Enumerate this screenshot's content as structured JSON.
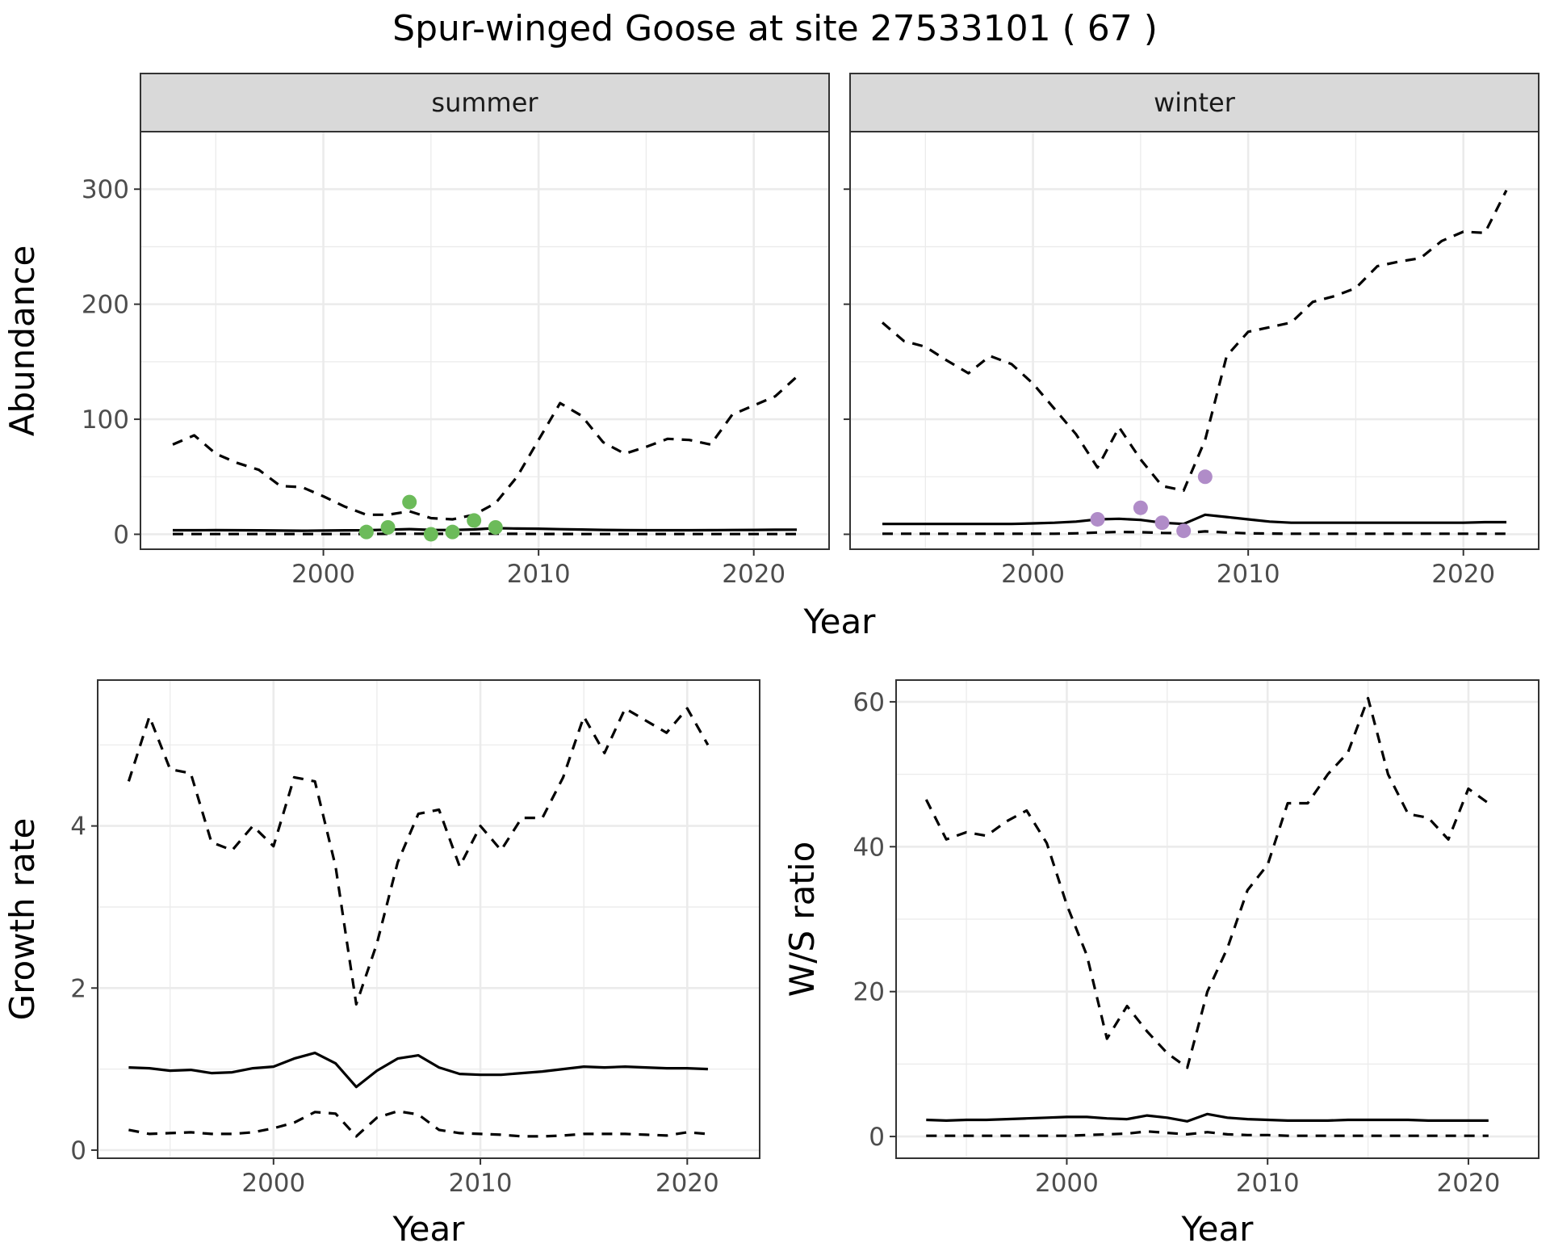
{
  "title": "Spur-winged Goose at site 27533101 ( 67 )",
  "colors": {
    "summer_points": "#6cbb5a",
    "winter_points": "#b08cc8",
    "lines": "#000000",
    "strip_fill": "#d9d9d9",
    "grid": "#ebebeb"
  },
  "chart_data": [
    {
      "type": "line",
      "facet": "summer",
      "strip_label": "summer",
      "xlabel": "Year",
      "ylabel": "Abundance",
      "xlim": [
        1991.5,
        2023.5
      ],
      "ylim": [
        -13,
        350
      ],
      "xticks": [
        2000,
        2010,
        2020
      ],
      "xtick_labels": [
        "2000",
        "2010",
        "2020"
      ],
      "yticks": [
        0,
        100,
        200,
        300
      ],
      "ytick_labels": [
        "0",
        "100",
        "200",
        "300"
      ],
      "grid": true,
      "series": [
        {
          "role": "upper",
          "style": "dashed",
          "x": [
            1993,
            1994,
            1995,
            1996,
            1997,
            1998,
            1999,
            2000,
            2001,
            2002,
            2003,
            2004,
            2005,
            2006,
            2007,
            2008,
            2009,
            2010,
            2011,
            2012,
            2013,
            2014,
            2015,
            2016,
            2017,
            2018,
            2019,
            2020,
            2021,
            2022
          ],
          "y": [
            78,
            86,
            70,
            62,
            56,
            42,
            41,
            33,
            24,
            17,
            17,
            20,
            14,
            13,
            17,
            27,
            50,
            82,
            114,
            103,
            80,
            70,
            76,
            83,
            82,
            78,
            104,
            112,
            120,
            137
          ]
        },
        {
          "role": "mean",
          "style": "solid",
          "x": [
            1993,
            1994,
            1995,
            1996,
            1997,
            1998,
            1999,
            2000,
            2001,
            2002,
            2003,
            2004,
            2005,
            2006,
            2007,
            2008,
            2009,
            2010,
            2011,
            2012,
            2013,
            2014,
            2015,
            2016,
            2017,
            2018,
            2019,
            2020,
            2021,
            2022
          ],
          "y": [
            3.5,
            3.5,
            3.6,
            3.5,
            3.4,
            3.2,
            3.1,
            3.2,
            3.4,
            3.5,
            4.0,
            4.5,
            3.8,
            3.7,
            4.2,
            5.3,
            5.0,
            4.8,
            4.4,
            4.1,
            3.8,
            3.6,
            3.5,
            3.5,
            3.5,
            3.6,
            3.7,
            3.8,
            3.9,
            4.0
          ]
        },
        {
          "role": "lower",
          "style": "dashed",
          "x": [
            1993,
            1994,
            1995,
            1996,
            1997,
            1998,
            1999,
            2000,
            2001,
            2002,
            2003,
            2004,
            2005,
            2006,
            2007,
            2008,
            2009,
            2010,
            2011,
            2012,
            2013,
            2014,
            2015,
            2016,
            2017,
            2018,
            2019,
            2020,
            2021,
            2022
          ],
          "y": [
            0.2,
            0.2,
            0.2,
            0.2,
            0.2,
            0.2,
            0.2,
            0.2,
            0.2,
            0.3,
            0.4,
            0.5,
            0.4,
            0.4,
            0.4,
            0.5,
            0.4,
            0.3,
            0.3,
            0.2,
            0.2,
            0.2,
            0.2,
            0.2,
            0.2,
            0.2,
            0.2,
            0.2,
            0.2,
            0.2
          ]
        }
      ],
      "points": {
        "x": [
          2002,
          2003,
          2004,
          2005,
          2006,
          2007,
          2008
        ],
        "y": [
          2,
          6,
          28,
          0,
          2,
          12,
          6
        ]
      }
    },
    {
      "type": "line",
      "facet": "winter",
      "strip_label": "winter",
      "xlabel": "Year",
      "ylabel": "Abundance",
      "xlim": [
        1991.5,
        2023.5
      ],
      "ylim": [
        -13,
        350
      ],
      "xticks": [
        2000,
        2010,
        2020
      ],
      "xtick_labels": [
        "2000",
        "2010",
        "2020"
      ],
      "yticks": [
        0,
        100,
        200,
        300
      ],
      "grid": true,
      "series": [
        {
          "role": "upper",
          "style": "dashed",
          "x": [
            1993,
            1994,
            1995,
            1996,
            1997,
            1998,
            1999,
            2000,
            2001,
            2002,
            2003,
            2004,
            2005,
            2006,
            2007,
            2008,
            2009,
            2010,
            2011,
            2012,
            2013,
            2014,
            2015,
            2016,
            2017,
            2018,
            2019,
            2020,
            2021,
            2022
          ],
          "y": [
            184,
            168,
            163,
            151,
            140,
            155,
            148,
            131,
            109,
            87,
            58,
            93,
            65,
            42,
            38,
            82,
            155,
            176,
            180,
            184,
            202,
            207,
            214,
            233,
            237,
            240,
            255,
            263,
            262,
            299
          ]
        },
        {
          "role": "mean",
          "style": "solid",
          "x": [
            1993,
            1994,
            1995,
            1996,
            1997,
            1998,
            1999,
            2000,
            2001,
            2002,
            2003,
            2004,
            2005,
            2006,
            2007,
            2008,
            2009,
            2010,
            2011,
            2012,
            2013,
            2014,
            2015,
            2016,
            2017,
            2018,
            2019,
            2020,
            2021,
            2022
          ],
          "y": [
            9,
            9,
            9,
            9,
            9,
            9,
            9,
            9.5,
            10,
            11,
            13,
            13.5,
            12.5,
            10,
            9,
            17,
            15,
            13,
            11,
            10,
            10,
            10,
            10,
            10,
            10,
            10,
            10,
            10,
            10.5,
            10.5
          ]
        },
        {
          "role": "lower",
          "style": "dashed",
          "x": [
            1993,
            1994,
            1995,
            1996,
            1997,
            1998,
            1999,
            2000,
            2001,
            2002,
            2003,
            2004,
            2005,
            2006,
            2007,
            2008,
            2009,
            2010,
            2011,
            2012,
            2013,
            2014,
            2015,
            2016,
            2017,
            2018,
            2019,
            2020,
            2021,
            2022
          ],
          "y": [
            0.5,
            0.5,
            0.5,
            0.5,
            0.5,
            0.5,
            0.5,
            0.5,
            0.5,
            0.8,
            1.5,
            2.0,
            1.8,
            1.2,
            1.0,
            2.5,
            1.5,
            0.8,
            0.6,
            0.5,
            0.5,
            0.5,
            0.5,
            0.5,
            0.5,
            0.5,
            0.5,
            0.5,
            0.5,
            0.5
          ]
        }
      ],
      "points": {
        "x": [
          2003,
          2005,
          2006,
          2007,
          2008
        ],
        "y": [
          13,
          23,
          10,
          3,
          50
        ]
      }
    },
    {
      "type": "line",
      "facet": "growth",
      "xlabel": "Year",
      "ylabel": "Growth rate",
      "xlim": [
        1991.5,
        2023.5
      ],
      "ylim": [
        -0.1,
        5.8
      ],
      "xticks": [
        2000,
        2010,
        2020
      ],
      "xtick_labels": [
        "2000",
        "2010",
        "2020"
      ],
      "yticks": [
        0,
        2,
        4
      ],
      "ytick_labels": [
        "0",
        "2",
        "4"
      ],
      "grid": true,
      "series": [
        {
          "role": "upper",
          "style": "dashed",
          "x": [
            1993,
            1994,
            1995,
            1996,
            1997,
            1998,
            1999,
            2000,
            2001,
            2002,
            2003,
            2004,
            2005,
            2006,
            2007,
            2008,
            2009,
            2010,
            2011,
            2012,
            2013,
            2014,
            2015,
            2016,
            2017,
            2018,
            2019,
            2020,
            2021
          ],
          "y": [
            4.55,
            5.35,
            4.7,
            4.65,
            3.8,
            3.7,
            4.0,
            3.75,
            4.6,
            4.55,
            3.5,
            1.8,
            2.55,
            3.55,
            4.15,
            4.2,
            3.5,
            4.0,
            3.7,
            4.1,
            4.1,
            4.6,
            5.35,
            4.9,
            5.45,
            5.3,
            5.15,
            5.45,
            5.0
          ]
        },
        {
          "role": "mean",
          "style": "solid",
          "x": [
            1993,
            1994,
            1995,
            1996,
            1997,
            1998,
            1999,
            2000,
            2001,
            2002,
            2003,
            2004,
            2005,
            2006,
            2007,
            2008,
            2009,
            2010,
            2011,
            2012,
            2013,
            2014,
            2015,
            2016,
            2017,
            2018,
            2019,
            2020,
            2021
          ],
          "y": [
            1.02,
            1.01,
            0.98,
            0.99,
            0.95,
            0.96,
            1.01,
            1.03,
            1.13,
            1.2,
            1.07,
            0.78,
            0.98,
            1.13,
            1.17,
            1.02,
            0.94,
            0.93,
            0.93,
            0.95,
            0.97,
            1.0,
            1.03,
            1.02,
            1.03,
            1.02,
            1.01,
            1.01,
            1.0
          ]
        },
        {
          "role": "lower",
          "style": "dashed",
          "x": [
            1993,
            1994,
            1995,
            1996,
            1997,
            1998,
            1999,
            2000,
            2001,
            2002,
            2003,
            2004,
            2005,
            2006,
            2007,
            2008,
            2009,
            2010,
            2011,
            2012,
            2013,
            2014,
            2015,
            2016,
            2017,
            2018,
            2019,
            2020,
            2021
          ],
          "y": [
            0.25,
            0.2,
            0.21,
            0.22,
            0.2,
            0.2,
            0.22,
            0.27,
            0.34,
            0.47,
            0.45,
            0.17,
            0.4,
            0.48,
            0.44,
            0.25,
            0.21,
            0.2,
            0.19,
            0.17,
            0.17,
            0.18,
            0.2,
            0.2,
            0.2,
            0.19,
            0.18,
            0.22,
            0.2
          ]
        }
      ]
    },
    {
      "type": "line",
      "facet": "ws_ratio",
      "xlabel": "Year",
      "ylabel": "W/S ratio",
      "xlim": [
        1991.5,
        2023.5
      ],
      "ylim": [
        -3,
        63
      ],
      "xticks": [
        2000,
        2010,
        2020
      ],
      "xtick_labels": [
        "2000",
        "2010",
        "2020"
      ],
      "yticks": [
        0,
        20,
        40,
        60
      ],
      "ytick_labels": [
        "0",
        "20",
        "40",
        "60"
      ],
      "grid": true,
      "series": [
        {
          "role": "upper",
          "style": "dashed",
          "x": [
            1993,
            1994,
            1995,
            1996,
            1997,
            1998,
            1999,
            2000,
            2001,
            2002,
            2003,
            2004,
            2005,
            2006,
            2007,
            2008,
            2009,
            2010,
            2011,
            2012,
            2013,
            2014,
            2015,
            2016,
            2017,
            2018,
            2019,
            2020,
            2021
          ],
          "y": [
            46.5,
            41,
            42,
            41.5,
            43.5,
            45,
            40.5,
            32,
            25,
            13.5,
            18,
            14.5,
            11.5,
            9.5,
            20,
            26,
            34,
            37.5,
            46,
            46,
            50,
            53,
            60.5,
            50,
            44.5,
            44,
            41,
            48,
            46
          ]
        },
        {
          "role": "mean",
          "style": "solid",
          "x": [
            1993,
            1994,
            1995,
            1996,
            1997,
            1998,
            1999,
            2000,
            2001,
            2002,
            2003,
            2004,
            2005,
            2006,
            2007,
            2008,
            2009,
            2010,
            2011,
            2012,
            2013,
            2014,
            2015,
            2016,
            2017,
            2018,
            2019,
            2020,
            2021
          ],
          "y": [
            2.3,
            2.2,
            2.3,
            2.3,
            2.4,
            2.5,
            2.6,
            2.7,
            2.7,
            2.5,
            2.4,
            2.9,
            2.6,
            2.1,
            3.1,
            2.6,
            2.4,
            2.3,
            2.2,
            2.2,
            2.2,
            2.3,
            2.3,
            2.3,
            2.3,
            2.2,
            2.2,
            2.2,
            2.2
          ]
        },
        {
          "role": "lower",
          "style": "dashed",
          "x": [
            1993,
            1994,
            1995,
            1996,
            1997,
            1998,
            1999,
            2000,
            2001,
            2002,
            2003,
            2004,
            2005,
            2006,
            2007,
            2008,
            2009,
            2010,
            2011,
            2012,
            2013,
            2014,
            2015,
            2016,
            2017,
            2018,
            2019,
            2020,
            2021
          ],
          "y": [
            0.1,
            0.1,
            0.1,
            0.1,
            0.1,
            0.1,
            0.1,
            0.1,
            0.2,
            0.3,
            0.4,
            0.7,
            0.5,
            0.3,
            0.6,
            0.3,
            0.2,
            0.2,
            0.1,
            0.1,
            0.1,
            0.1,
            0.1,
            0.1,
            0.1,
            0.1,
            0.1,
            0.1,
            0.1
          ]
        }
      ]
    }
  ]
}
